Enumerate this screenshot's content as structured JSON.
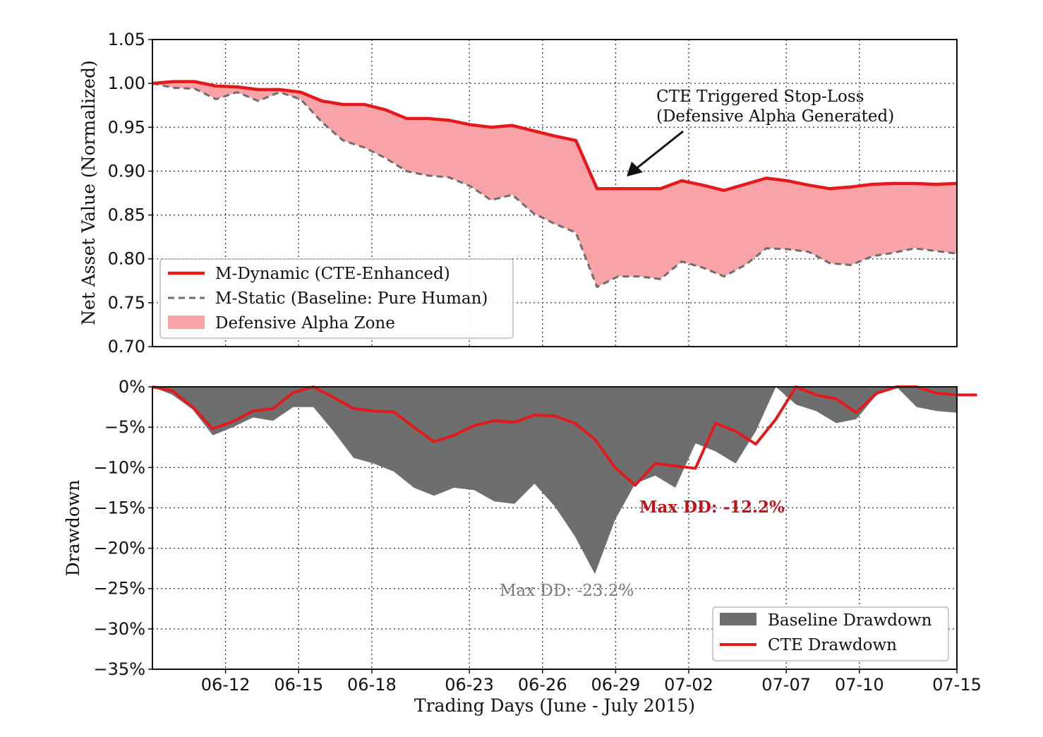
{
  "chart_data": [
    {
      "type": "line",
      "ylabel": "Net Asset Value (Normalized)",
      "ylim": [
        0.7,
        1.05
      ],
      "yticks": [
        "0.70",
        "0.75",
        "0.80",
        "0.85",
        "0.90",
        "0.95",
        "1.00",
        "1.05"
      ],
      "grid": true,
      "legend_position": "lower-left",
      "legend": [
        "M-Dynamic (CTE-Enhanced)",
        "M-Static (Baseline: Pure Human)",
        "Defensive Alpha Zone"
      ],
      "series": [
        {
          "name": "M-Dynamic (CTE-Enhanced)",
          "color": "#e31a1c",
          "values": [
            1.0,
            1.002,
            1.002,
            0.997,
            0.996,
            0.993,
            0.993,
            0.99,
            0.98,
            0.976,
            0.976,
            0.97,
            0.96,
            0.96,
            0.958,
            0.953,
            0.95,
            0.952,
            0.946,
            0.94,
            0.935,
            0.88,
            0.88,
            0.88,
            0.88,
            0.889,
            0.884,
            0.878,
            0.885,
            0.892,
            0.889,
            0.884,
            0.88,
            0.882,
            0.885,
            0.886,
            0.886,
            0.885,
            0.886
          ]
        },
        {
          "name": "M-Static (Baseline: Pure Human)",
          "color": "#6e6e6e",
          "values": [
            1.0,
            0.995,
            0.994,
            0.982,
            0.99,
            0.98,
            0.99,
            0.982,
            0.956,
            0.935,
            0.927,
            0.915,
            0.9,
            0.895,
            0.893,
            0.883,
            0.867,
            0.873,
            0.852,
            0.84,
            0.83,
            0.768,
            0.78,
            0.78,
            0.777,
            0.797,
            0.79,
            0.78,
            0.793,
            0.812,
            0.811,
            0.808,
            0.795,
            0.793,
            0.803,
            0.807,
            0.812,
            0.809,
            0.806
          ]
        }
      ],
      "annotation": {
        "line1": "CTE Triggered Stop-Loss",
        "line2": "(Defensive Alpha Generated)"
      }
    },
    {
      "type": "area",
      "ylabel": "Drawdown",
      "xlabel": "Trading Days (June - July 2015)",
      "ylim": [
        -35,
        0
      ],
      "yticks": [
        "−35%",
        "−30%",
        "−25%",
        "−20%",
        "−15%",
        "−10%",
        "−5%",
        "0%"
      ],
      "xticks": [
        "06-12",
        "06-15",
        "06-18",
        "06-23",
        "06-26",
        "06-29",
        "07-02",
        "07-07",
        "07-10",
        "07-15"
      ],
      "xtick_positions": [
        3,
        6,
        9,
        13,
        16,
        19,
        22,
        26,
        29,
        33
      ],
      "grid": true,
      "legend_position": "lower-right",
      "legend": [
        "Baseline Drawdown",
        "CTE Drawdown"
      ],
      "series": [
        {
          "name": "Baseline Drawdown",
          "color": "#6e6e6e",
          "values": [
            0,
            -1.0,
            -2.8,
            -6.0,
            -5.0,
            -3.8,
            -4.2,
            -2.5,
            -2.5,
            -5.5,
            -8.8,
            -9.5,
            -10.5,
            -12.5,
            -13.5,
            -12.5,
            -12.8,
            -14.2,
            -14.5,
            -12.0,
            -14.8,
            -18.5,
            -23.2,
            -16.5,
            -12.0,
            -11.0,
            -12.5,
            -7.0,
            -8.0,
            -9.5,
            -5.5,
            0,
            -2.2,
            -3.0,
            -4.5,
            -4.0,
            -1.0,
            0,
            -2.5,
            -3.0,
            -3.2
          ]
        },
        {
          "name": "CTE Drawdown",
          "color": "#e31a1c",
          "values": [
            0,
            -0.5,
            -2.5,
            -5.2,
            -4.3,
            -3.0,
            -2.7,
            -0.7,
            0,
            -1.3,
            -2.7,
            -3.0,
            -3.1,
            -5.0,
            -6.8,
            -6.0,
            -4.8,
            -4.2,
            -4.4,
            -3.5,
            -3.6,
            -4.5,
            -6.5,
            -10.0,
            -12.2,
            -9.5,
            -9.8,
            -10.1,
            -4.5,
            -5.5,
            -7.1,
            -4.0,
            0,
            -1.0,
            -1.5,
            -3.2,
            -0.8,
            0,
            0,
            -0.8,
            -1.0,
            -1.0
          ]
        }
      ],
      "annotations": [
        {
          "text": "Max DD: -12.2%",
          "color": "#c0141c"
        },
        {
          "text": "Max DD: -23.2%",
          "color": "#7a7a7a"
        }
      ]
    }
  ]
}
